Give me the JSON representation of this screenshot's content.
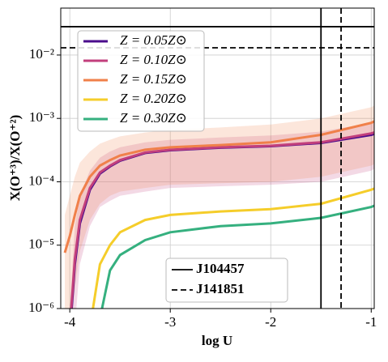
{
  "chart_data": {
    "type": "line",
    "log_y": true,
    "grid": true,
    "xlabel": "log U",
    "ylabel": "X(O⁺³)/X(O⁺²)",
    "xlim": [
      -4.09,
      -0.97
    ],
    "xticks": [
      -4,
      -3,
      -2,
      -1
    ],
    "ylim": [
      1e-06,
      0.055
    ],
    "yticks": [
      {
        "value": 1e-06,
        "label": "10⁻⁶"
      },
      {
        "value": 1e-05,
        "label": "10⁻⁵"
      },
      {
        "value": 0.0001,
        "label": "10⁻⁴"
      },
      {
        "value": 0.001,
        "label": "10⁻³"
      },
      {
        "value": 0.01,
        "label": "10⁻²"
      }
    ],
    "x": [
      -4.05,
      -4,
      -3.95,
      -3.9,
      -3.8,
      -3.7,
      -3.6,
      -3.5,
      -3.25,
      -3,
      -2.5,
      -2,
      -1.5,
      -1,
      -0.97
    ],
    "series": [
      {
        "name": "Z = 0.05Z⊙",
        "color": "#4b0c8c",
        "values": [
          null,
          4e-07,
          5e-06,
          2.2e-05,
          7.5e-05,
          0.000135,
          0.000175,
          0.000215,
          0.000285,
          0.000315,
          0.000345,
          0.000365,
          0.00041,
          0.00055,
          0.00057
        ]
      },
      {
        "name": "Z = 0.10Z⊙",
        "color": "#c23f7c",
        "values": [
          null,
          5e-07,
          6e-06,
          2.5e-05,
          8e-05,
          0.00014,
          0.00018,
          0.00022,
          0.00029,
          0.00032,
          0.00035,
          0.00037,
          0.00042,
          0.00058,
          0.0006
        ],
        "upper": [
          5e-07,
          1e-06,
          2e-05,
          6e-05,
          0.00015,
          0.00024,
          0.0003,
          0.00035,
          0.00042,
          0.00046,
          0.0005,
          0.00054,
          0.00062,
          0.00085,
          0.00088
        ],
        "lower": [
          5e-07,
          5e-07,
          5e-07,
          5e-06,
          2e-05,
          4e-05,
          5e-05,
          6e-05,
          7e-05,
          8e-05,
          8.5e-05,
          9e-05,
          0.0001,
          0.00015,
          0.00016
        ]
      },
      {
        "name": "Z = 0.15Z⊙",
        "color": "#f0804a",
        "values": [
          7.6e-06,
          1.4e-05,
          3e-05,
          6e-05,
          0.00012,
          0.00018,
          0.00022,
          0.00026,
          0.00032,
          0.00035,
          0.00038,
          0.00042,
          0.00055,
          0.00085,
          0.0009
        ],
        "upper": [
          3e-05,
          6e-05,
          0.00012,
          0.0002,
          0.0003,
          0.0004,
          0.00046,
          0.00052,
          0.0006,
          0.00066,
          0.00072,
          0.0008,
          0.001,
          0.0015,
          0.0016
        ],
        "lower": [
          5e-07,
          5e-07,
          2e-06,
          8e-06,
          2.5e-05,
          4.5e-05,
          6e-05,
          7e-05,
          8e-05,
          9e-05,
          9.5e-05,
          0.0001,
          0.00012,
          0.00018,
          0.00019
        ]
      },
      {
        "name": "Z = 0.20Z⊙",
        "color": "#f5cd2a",
        "values": [
          null,
          null,
          null,
          null,
          5e-07,
          5e-06,
          1e-05,
          1.6e-05,
          2.5e-05,
          3e-05,
          3.4e-05,
          3.7e-05,
          4.5e-05,
          7.5e-05,
          7.8e-05
        ]
      },
      {
        "name": "Z = 0.30Z⊙",
        "color": "#35b07f",
        "values": [
          null,
          null,
          null,
          null,
          null,
          7e-07,
          4e-06,
          7e-06,
          1.2e-05,
          1.6e-05,
          2e-05,
          2.2e-05,
          2.7e-05,
          4e-05,
          4.2e-05
        ]
      }
    ],
    "references": [
      {
        "name": "J104457",
        "dash": "solid",
        "y": 0.028,
        "x": -1.5
      },
      {
        "name": "J141851",
        "dash": "dashed",
        "y": 0.013,
        "x": -1.3
      }
    ]
  }
}
